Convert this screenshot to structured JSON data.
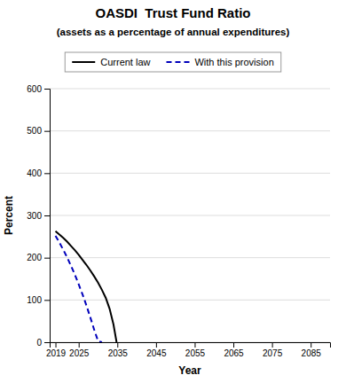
{
  "chart_data": {
    "type": "line",
    "title": "OASDI  Trust Fund Ratio",
    "subtitle": "(assets as a percentage of annual expenditures)",
    "x_label": "Year",
    "y_label": "Percent",
    "xlim": [
      2017.5,
      2090
    ],
    "ylim": [
      0,
      600
    ],
    "xticks": [
      2019,
      2025,
      2035,
      2045,
      2055,
      2065,
      2075,
      2085
    ],
    "yticks": [
      0,
      100,
      200,
      300,
      400,
      500,
      600
    ],
    "grid": true,
    "legend": "top",
    "series": [
      {
        "name": "Current law",
        "color": "#000000",
        "line_style": "solid",
        "x": [
          2019,
          2020,
          2021,
          2022,
          2023,
          2024,
          2025,
          2026,
          2027,
          2028,
          2029,
          2030,
          2031,
          2032,
          2033,
          2034,
          2034.8
        ],
        "values": [
          263,
          255,
          247,
          238,
          228,
          218,
          207,
          195,
          183,
          170,
          156,
          141,
          124,
          105,
          79,
          42,
          0
        ]
      },
      {
        "name": "With this provision",
        "color": "#0000bb",
        "line_style": "dashed",
        "x": [
          2019,
          2020,
          2021,
          2022,
          2023,
          2024,
          2025,
          2026,
          2027,
          2028,
          2029,
          2030,
          2031
        ],
        "values": [
          252,
          236,
          219,
          201,
          181,
          160,
          137,
          113,
          87,
          59,
          30,
          3,
          0
        ]
      }
    ]
  }
}
